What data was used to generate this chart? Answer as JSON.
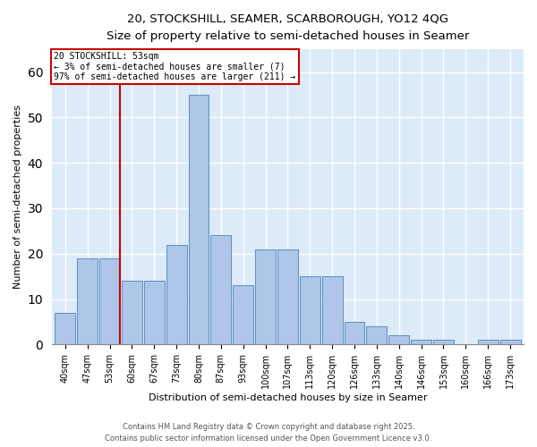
{
  "title1": "20, STOCKSHILL, SEAMER, SCARBOROUGH, YO12 4QG",
  "title2": "Size of property relative to semi-detached houses in Seamer",
  "xlabel": "Distribution of semi-detached houses by size in Seamer",
  "ylabel": "Number of semi-detached properties",
  "categories": [
    "40sqm",
    "47sqm",
    "53sqm",
    "60sqm",
    "67sqm",
    "73sqm",
    "80sqm",
    "87sqm",
    "93sqm",
    "100sqm",
    "107sqm",
    "113sqm",
    "120sqm",
    "126sqm",
    "133sqm",
    "140sqm",
    "146sqm",
    "153sqm",
    "160sqm",
    "166sqm",
    "173sqm"
  ],
  "values": [
    7,
    19,
    19,
    14,
    14,
    22,
    55,
    24,
    13,
    21,
    21,
    15,
    15,
    5,
    4,
    2,
    1,
    1,
    0,
    1,
    1
  ],
  "bar_color": "#aec6e8",
  "bar_edge_color": "#5a8fc2",
  "grid_color": "#c8d8e8",
  "background_color": "#ddeaf8",
  "vline_x_index": 2,
  "vline_color": "#cc0000",
  "annotation_text": "20 STOCKSHILL: 53sqm\n← 3% of semi-detached houses are smaller (7)\n97% of semi-detached houses are larger (211) →",
  "annotation_box_color": "#cc0000",
  "ylim": [
    0,
    65
  ],
  "yticks": [
    0,
    10,
    20,
    30,
    40,
    50,
    60
  ],
  "footer1": "Contains HM Land Registry data © Crown copyright and database right 2025.",
  "footer2": "Contains public sector information licensed under the Open Government Licence v3.0."
}
